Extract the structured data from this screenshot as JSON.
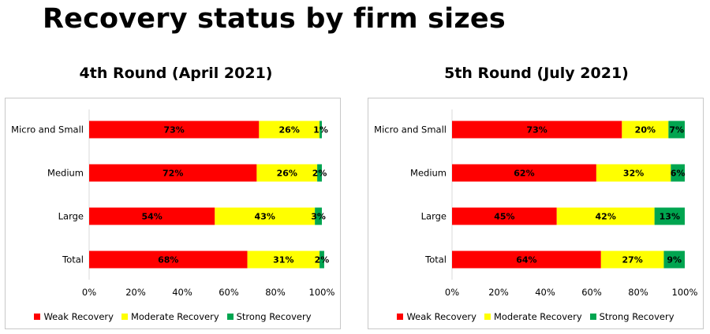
{
  "page_title": "Recovery status by firm sizes",
  "chart_data": [
    {
      "type": "bar",
      "orientation": "horizontal",
      "stacked": true,
      "title": "4th Round (April 2021)",
      "categories": [
        "Micro and Small",
        "Medium",
        "Large",
        "Total"
      ],
      "series": [
        {
          "name": "Weak Recovery",
          "color": "#ff0000",
          "values": [
            73,
            72,
            54,
            68
          ]
        },
        {
          "name": "Moderate Recovery",
          "color": "#ffff00",
          "values": [
            26,
            26,
            43,
            31
          ]
        },
        {
          "name": "Strong Recovery",
          "color": "#00a550",
          "values": [
            1,
            2,
            3,
            2
          ]
        }
      ],
      "xlim": [
        0,
        100
      ],
      "xticks": [
        "0%",
        "20%",
        "40%",
        "60%",
        "80%",
        "100%"
      ],
      "legend_position": "bottom"
    },
    {
      "type": "bar",
      "orientation": "horizontal",
      "stacked": true,
      "title": "5th Round (July 2021)",
      "categories": [
        "Micro and Small",
        "Medium",
        "Large",
        "Total"
      ],
      "series": [
        {
          "name": "Weak Recovery",
          "color": "#ff0000",
          "values": [
            73,
            62,
            45,
            64
          ]
        },
        {
          "name": "Moderate Recovery",
          "color": "#ffff00",
          "values": [
            20,
            32,
            42,
            27
          ]
        },
        {
          "name": "Strong Recovery",
          "color": "#00a550",
          "values": [
            7,
            6,
            13,
            9
          ]
        }
      ],
      "xlim": [
        0,
        100
      ],
      "xticks": [
        "0%",
        "20%",
        "40%",
        "60%",
        "80%",
        "100%"
      ],
      "legend_position": "bottom"
    }
  ]
}
